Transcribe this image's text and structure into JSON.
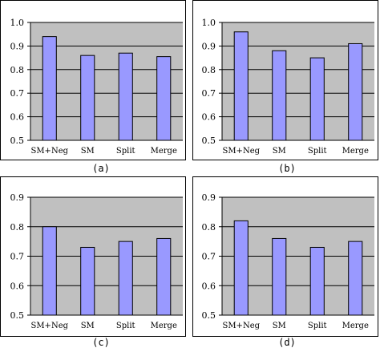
{
  "colors": {
    "plot_bg": "#c0c0c0",
    "bar_fill": "#9999ff",
    "bar_stroke": "#000000",
    "grid": "#000000"
  },
  "chart_data": [
    {
      "type": "bar",
      "caption": "(a)",
      "categories": [
        "SM+Neg",
        "SM",
        "Split",
        "Merge"
      ],
      "values": [
        0.94,
        0.86,
        0.87,
        0.855
      ],
      "ylim": [
        0.5,
        1.0
      ],
      "yticks": [
        "0.5",
        "0.6",
        "0.7",
        "0.8",
        "0.9",
        "1.0"
      ],
      "grid": true
    },
    {
      "type": "bar",
      "caption": "(b)",
      "categories": [
        "SM+Neg",
        "SM",
        "Split",
        "Merge"
      ],
      "values": [
        0.96,
        0.88,
        0.85,
        0.91
      ],
      "ylim": [
        0.5,
        1.0
      ],
      "yticks": [
        "0.5",
        "0.6",
        "0.7",
        "0.8",
        "0.9",
        "1.0"
      ],
      "grid": true
    },
    {
      "type": "bar",
      "caption": "(c)",
      "categories": [
        "SM+Neg",
        "SM",
        "Split",
        "Merge"
      ],
      "values": [
        0.8,
        0.73,
        0.75,
        0.76
      ],
      "ylim": [
        0.5,
        0.9
      ],
      "yticks": [
        "0.5",
        "0.6",
        "0.7",
        "0.8",
        "0.9"
      ],
      "grid": true
    },
    {
      "type": "bar",
      "caption": "(d)",
      "categories": [
        "SM+Neg",
        "SM",
        "Split",
        "Merge"
      ],
      "values": [
        0.82,
        0.76,
        0.73,
        0.75
      ],
      "ylim": [
        0.5,
        0.9
      ],
      "yticks": [
        "0.5",
        "0.6",
        "0.7",
        "0.8",
        "0.9"
      ],
      "grid": true
    }
  ]
}
